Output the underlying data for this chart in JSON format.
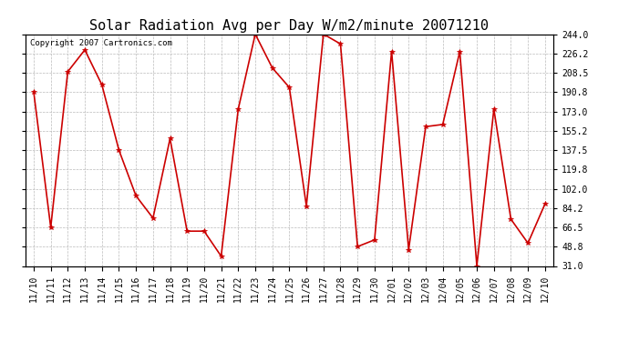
{
  "title": "Solar Radiation Avg per Day W/m2/minute 20071210",
  "copyright_text": "Copyright 2007 Cartronics.com",
  "x_labels": [
    "11/10",
    "11/11",
    "11/12",
    "11/13",
    "11/14",
    "11/15",
    "11/16",
    "11/17",
    "11/18",
    "11/19",
    "11/20",
    "11/21",
    "11/22",
    "11/23",
    "11/24",
    "11/25",
    "11/26",
    "11/27",
    "11/28",
    "11/29",
    "11/30",
    "12/01",
    "12/02",
    "12/03",
    "12/04",
    "12/05",
    "12/06",
    "12/07",
    "12/08",
    "12/09",
    "12/10"
  ],
  "y_values": [
    191.0,
    66.5,
    209.5,
    229.5,
    197.5,
    137.5,
    95.5,
    75.0,
    148.0,
    63.0,
    63.0,
    40.0,
    175.0,
    244.0,
    213.0,
    195.0,
    86.0,
    244.0,
    235.0,
    48.8,
    55.0,
    228.0,
    46.0,
    159.0,
    161.0,
    228.0,
    31.0,
    175.0,
    74.0,
    52.0,
    88.0
  ],
  "y_ticks": [
    31.0,
    48.8,
    66.5,
    84.2,
    102.0,
    119.8,
    137.5,
    155.2,
    173.0,
    190.8,
    208.5,
    226.2,
    244.0
  ],
  "y_min": 31.0,
  "y_max": 244.0,
  "line_color": "#cc0000",
  "marker": "*",
  "marker_size": 4,
  "bg_color": "#ffffff",
  "plot_bg_color": "#ffffff",
  "grid_color": "#bbbbbb",
  "title_fontsize": 11,
  "tick_fontsize": 7,
  "copyright_fontsize": 6.5
}
